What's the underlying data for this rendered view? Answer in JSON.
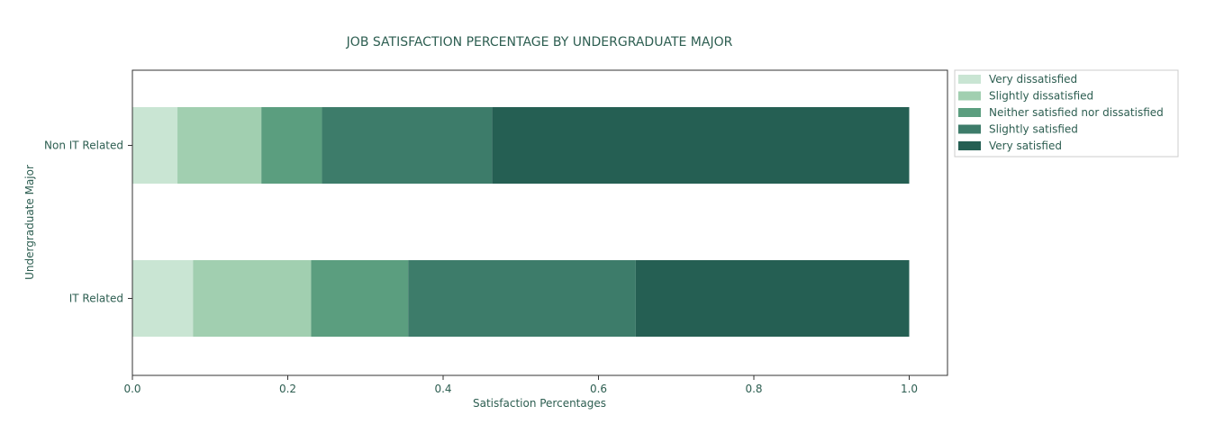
{
  "chart_data": {
    "type": "bar",
    "orientation": "horizontal",
    "stacked": true,
    "title": "JOB SATISFACTION PERCENTAGE BY UNDERGRADUATE MAJOR",
    "xlabel": "Satisfaction Percentages",
    "ylabel": "Undergraduate Major",
    "xlim": [
      0,
      1.05
    ],
    "xticks": [
      "0.0",
      "0.2",
      "0.4",
      "0.6",
      "0.8",
      "1.0"
    ],
    "categories": [
      "Non IT Related",
      "IT Related"
    ],
    "series": [
      {
        "name": "Very dissatisfied",
        "color": "#c9e5d3",
        "values": [
          0.058,
          0.078
        ]
      },
      {
        "name": "Slightly dissatisfied",
        "color": "#a1cfb0",
        "values": [
          0.108,
          0.152
        ]
      },
      {
        "name": "Neither satisfied nor dissatisfied",
        "color": "#5b9e7f",
        "values": [
          0.078,
          0.125
        ]
      },
      {
        "name": "Slightly satisfied",
        "color": "#3d7c6a",
        "values": [
          0.219,
          0.293
        ]
      },
      {
        "name": "Very satisfied",
        "color": "#255f53",
        "values": [
          0.537,
          0.352
        ]
      }
    ],
    "grid": false,
    "legend_position": "outside-top-right",
    "text_color": "#2d5e51"
  }
}
